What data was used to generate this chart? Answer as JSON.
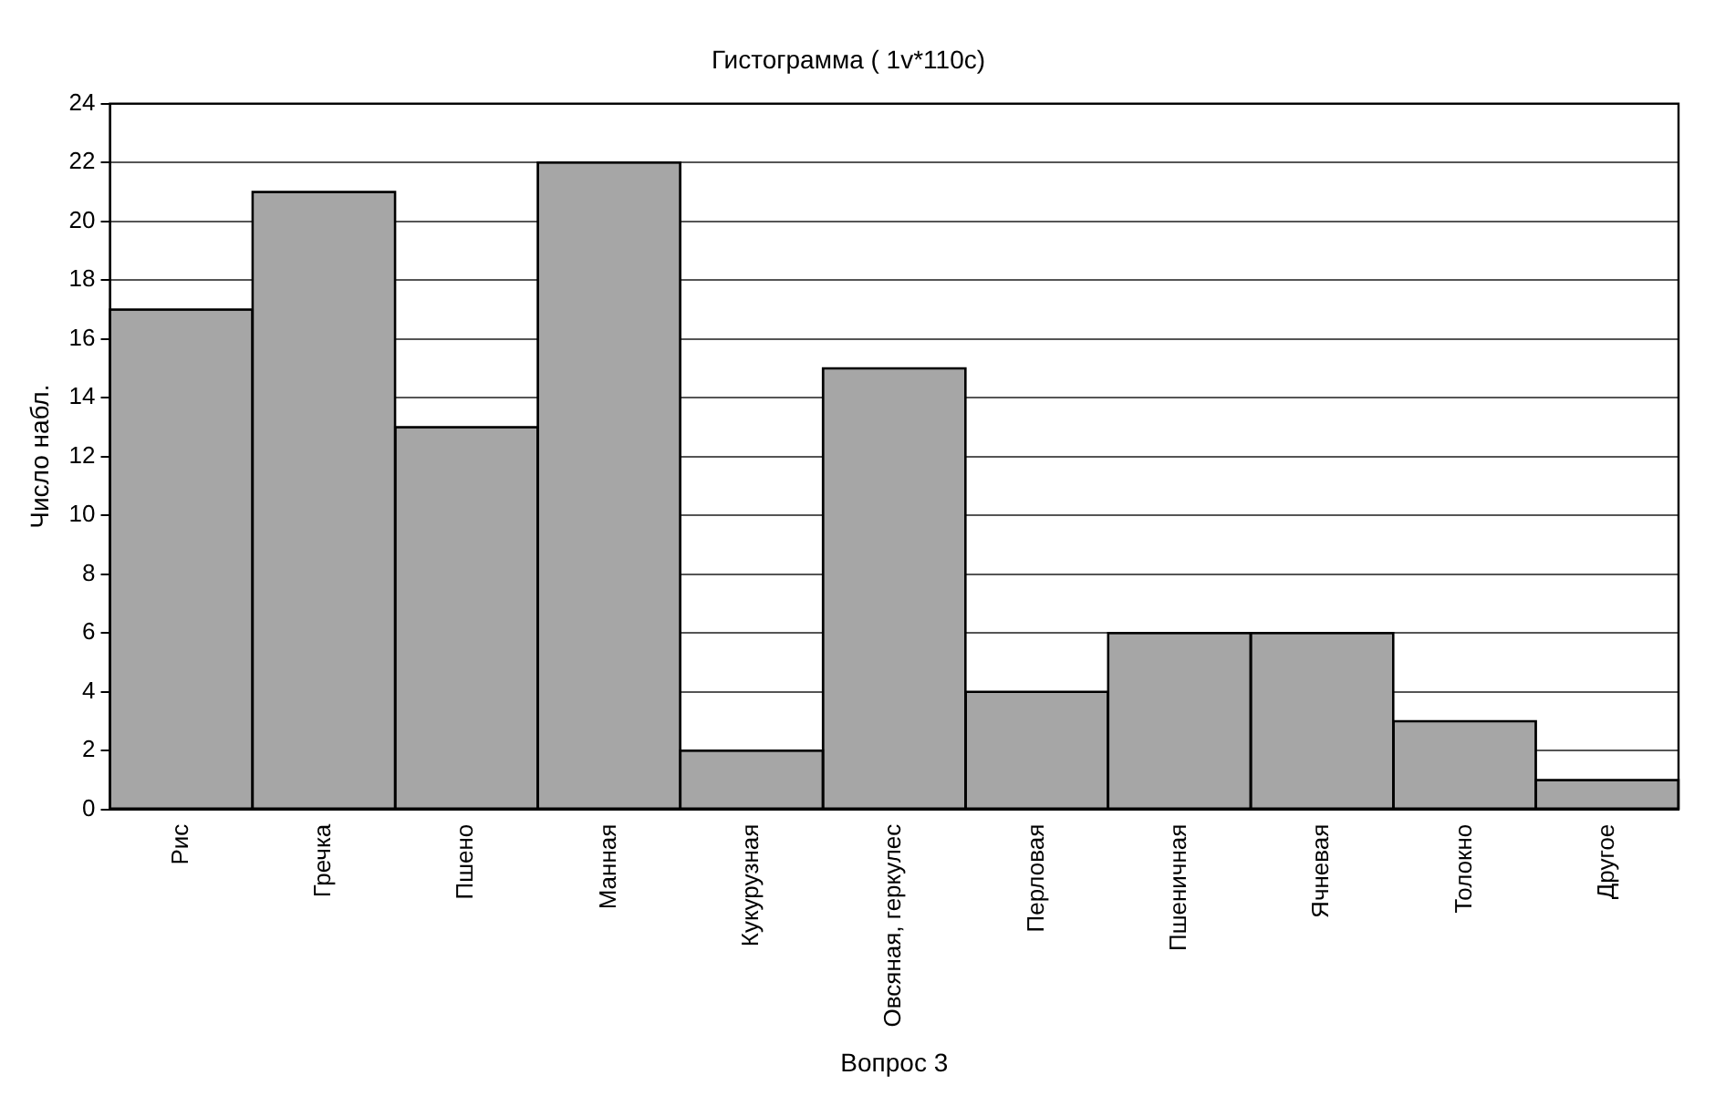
{
  "chart_data": {
    "type": "bar",
    "title": "Гистограмма ( 1v*110c)",
    "xlabel": "Вопрос 3",
    "ylabel": "Число набл.",
    "categories": [
      "Рис",
      "Гречка",
      "Пшено",
      "Манная",
      "Кукурузная",
      "Овсяная, геркулес",
      "Перловая",
      "Пшеничная",
      "Ячневая",
      "Толокно",
      "Другое"
    ],
    "values": [
      17,
      21,
      13,
      22,
      2,
      15,
      4,
      6,
      6,
      3,
      1
    ],
    "color": "#a6a6a6",
    "ylim": [
      0,
      24
    ],
    "yticks": [
      0,
      2,
      4,
      6,
      8,
      10,
      12,
      14,
      16,
      18,
      20,
      22,
      24
    ],
    "grid": "y",
    "legend": false
  }
}
